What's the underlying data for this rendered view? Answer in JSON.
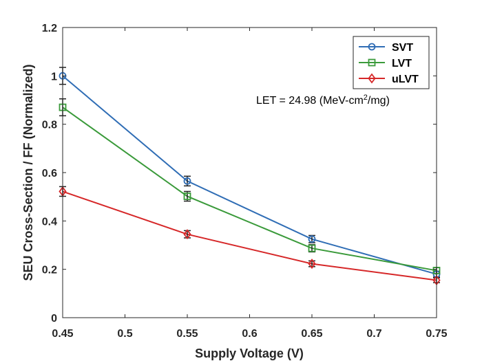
{
  "chart_data": {
    "type": "line",
    "title": "",
    "xlabel": "Supply Voltage (V)",
    "ylabel": "SEU Cross-Section / FF (Normalized)",
    "xlim": [
      0.45,
      0.75
    ],
    "ylim": [
      0,
      1.2
    ],
    "xticks": [
      "0.45",
      "0.5",
      "0.55",
      "0.6",
      "0.65",
      "0.7",
      "0.75"
    ],
    "yticks": [
      "0",
      "0.2",
      "0.4",
      "0.6",
      "0.8",
      "1",
      "1.2"
    ],
    "grid": false,
    "legend_position": "top-right",
    "x": [
      0.45,
      0.55,
      0.65,
      0.75
    ],
    "series": [
      {
        "name": "SVT",
        "color": "#2f6db5",
        "marker": "circle",
        "values": [
          1.0,
          0.565,
          0.325,
          0.18
        ],
        "errors": [
          0.035,
          0.02,
          0.015,
          0.012
        ]
      },
      {
        "name": "LVT",
        "color": "#3a9a3a",
        "marker": "square",
        "values": [
          0.87,
          0.502,
          0.287,
          0.195
        ],
        "errors": [
          0.035,
          0.02,
          0.015,
          0.012
        ]
      },
      {
        "name": "uLVT",
        "color": "#d62728",
        "marker": "diamond",
        "values": [
          0.522,
          0.345,
          0.223,
          0.155
        ],
        "errors": [
          0.02,
          0.015,
          0.012,
          0.01
        ]
      }
    ],
    "annotation": {
      "prefix": "LET = 24.98 (MeV-cm",
      "superscript": "2",
      "suffix": "/mg)"
    }
  }
}
